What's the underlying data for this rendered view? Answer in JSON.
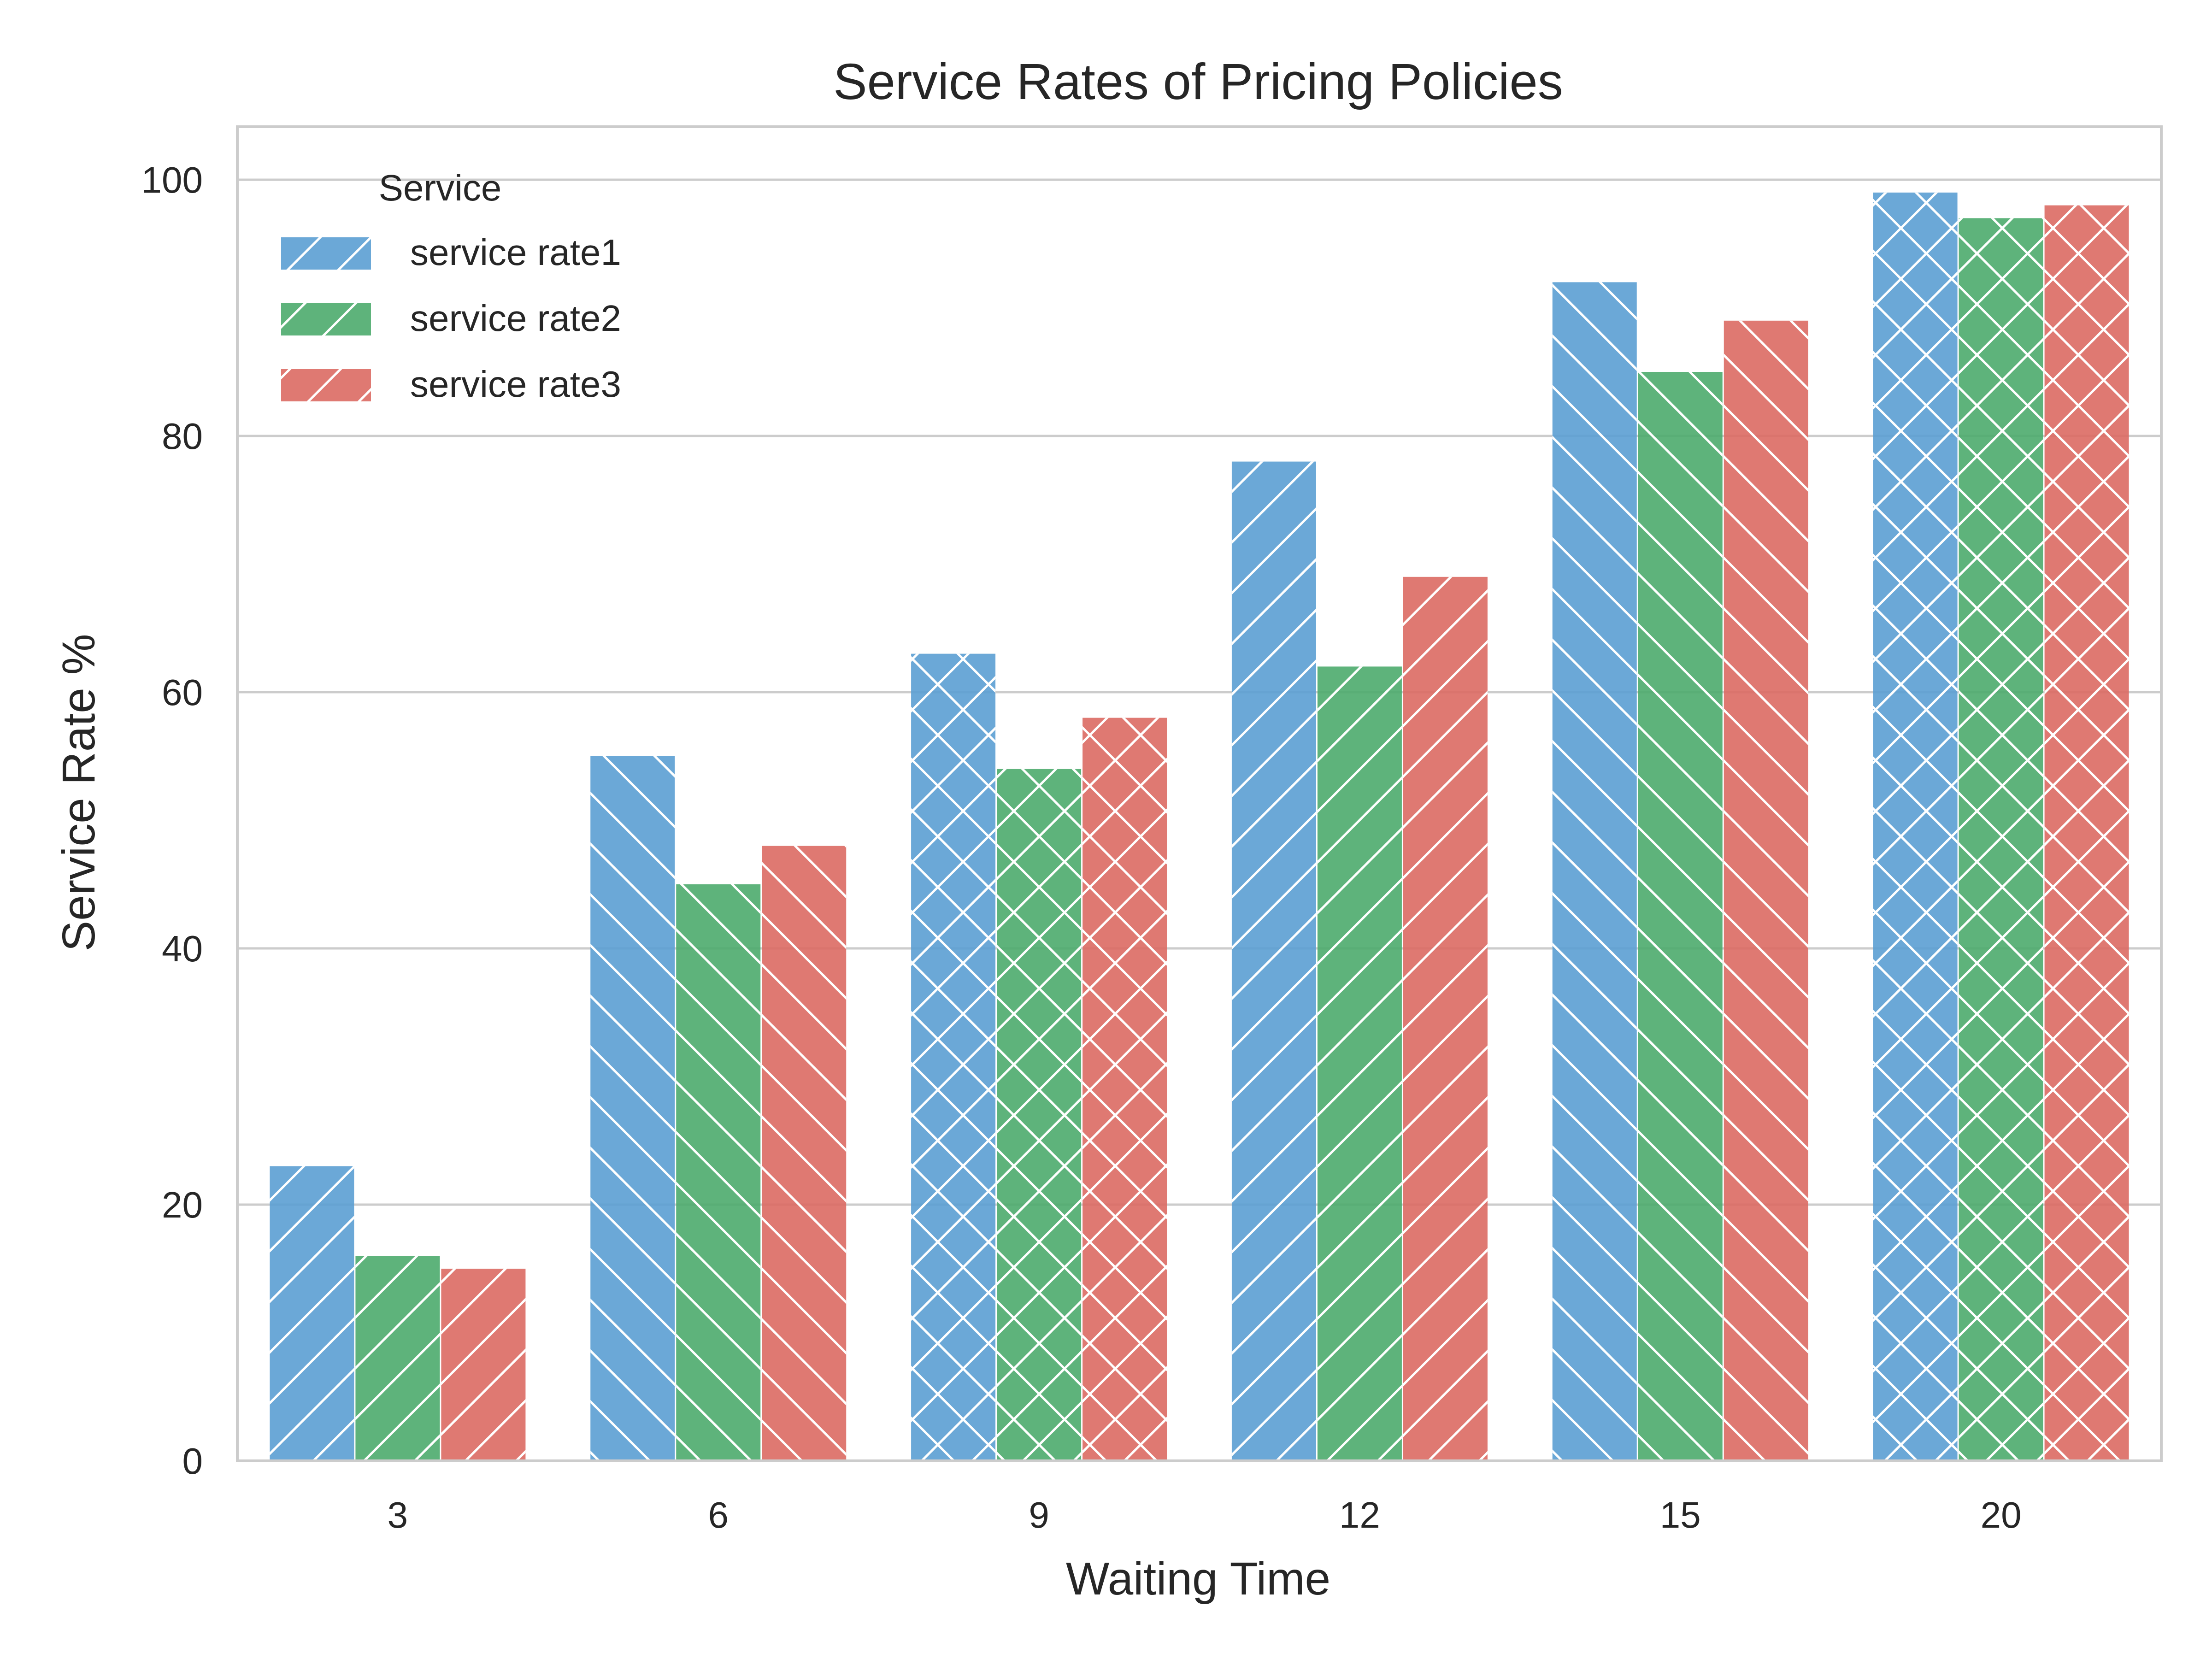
{
  "chart_data": {
    "type": "bar",
    "title": "Service Rates of Pricing Policies",
    "xlabel": "Waiting Time",
    "ylabel": "Service Rate %",
    "categories": [
      "3",
      "6",
      "9",
      "12",
      "15",
      "20"
    ],
    "ylim": [
      0,
      104
    ],
    "yticks": [
      "0",
      "20",
      "40",
      "60",
      "80",
      "100"
    ],
    "grid": "horizontal",
    "legend": {
      "title": "Service",
      "placement": "top-left"
    },
    "series": [
      {
        "name": "service rate1",
        "color": "#5b9fd3",
        "values": [
          23,
          55,
          63,
          78,
          92,
          99
        ]
      },
      {
        "name": "service rate2",
        "color": "#4dab6d",
        "values": [
          16,
          45,
          54,
          62,
          85,
          97
        ]
      },
      {
        "name": "service rate3",
        "color": "#dc6a63",
        "values": [
          15,
          48,
          58,
          69,
          89,
          98
        ]
      }
    ],
    "hatch_by_category": [
      "/",
      "\\",
      "x",
      "/",
      "\\",
      "x"
    ]
  }
}
